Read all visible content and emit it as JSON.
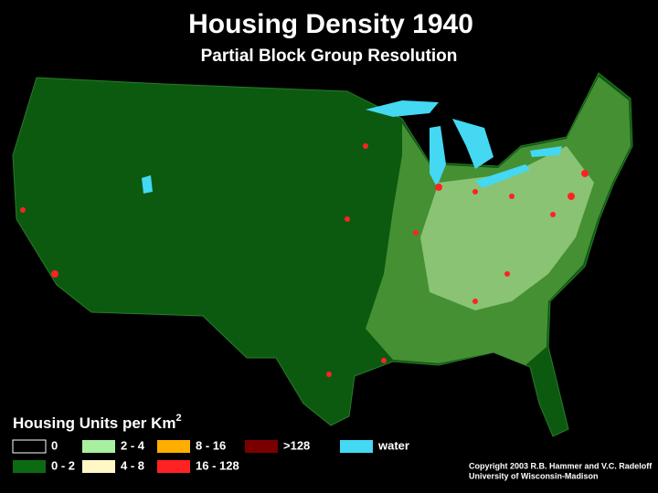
{
  "header": {
    "title": "Housing Density 1940",
    "subtitle": "Partial Block Group Resolution"
  },
  "legend": {
    "title": "Housing Units per Km",
    "title_superscript": "2",
    "items": [
      {
        "label": "0",
        "color": "#000000"
      },
      {
        "label": "0 - 2",
        "color": "#0b6a12"
      },
      {
        "label": "2 - 4",
        "color": "#a6f0a0"
      },
      {
        "label": "4 - 8",
        "color": "#fff7c6"
      },
      {
        "label": "8 - 16",
        "color": "#ffae00"
      },
      {
        "label": "16 - 128",
        "color": "#ff2222"
      },
      {
        "label": ">128",
        "color": "#7a0000"
      },
      {
        "label": "water",
        "color": "#44d8f2"
      }
    ]
  },
  "credits": [
    "Copyright 2003 R.B. Hammer and V.C. Radeloff",
    "University of Wisconsin-Madison"
  ]
}
